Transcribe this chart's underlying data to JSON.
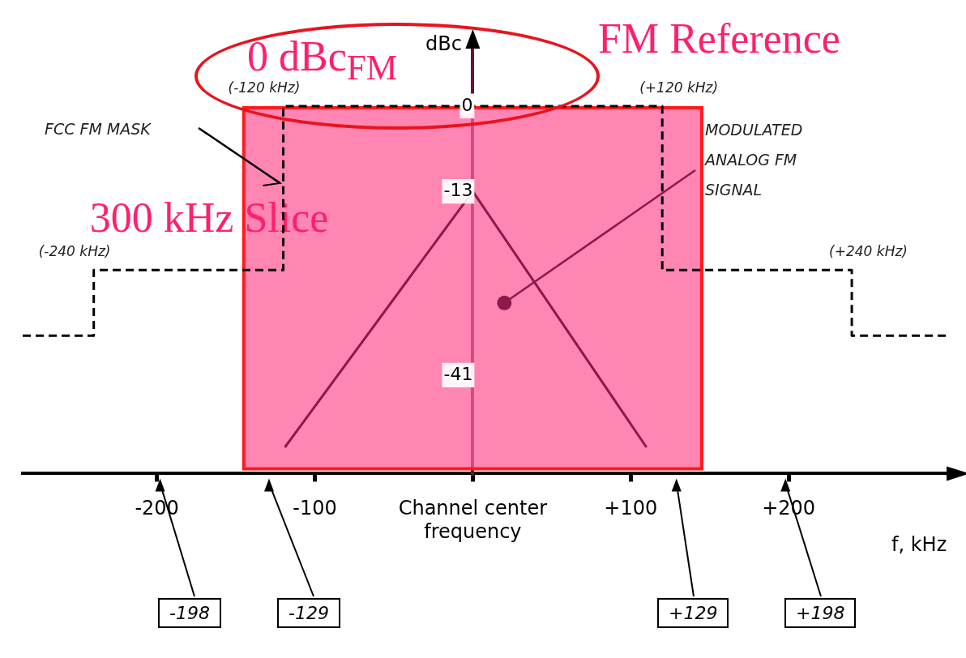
{
  "chart_data": {
    "type": "line",
    "xlabel": "f, kHz",
    "ylabel": "dBc",
    "xlim": [
      -285,
      300
    ],
    "ylim": [
      -56,
      9
    ],
    "xticks": [
      -200,
      -100,
      {
        "value": 0,
        "label": "Channel center frequency"
      },
      {
        "value": 100,
        "label": "+100"
      },
      {
        "value": 200,
        "label": "+200"
      }
    ],
    "yticks": [
      0,
      -13,
      -41
    ],
    "grid": false,
    "legend": false,
    "marker": "none",
    "series": [
      {
        "type": "line",
        "line_style": "dashed",
        "color": "#000000",
        "x": [
          -285,
          -240,
          -240,
          -120,
          -120,
          120,
          120,
          240,
          240,
          300
        ],
        "values": [
          -35,
          -35,
          -25,
          -25,
          0,
          0,
          -25,
          -25,
          -35,
          -35
        ]
      },
      {
        "type": "line",
        "color": "#8b1a4a",
        "x": [
          -119,
          0,
          110
        ],
        "values": [
          -52,
          -13,
          -52
        ]
      }
    ],
    "bands": [
      {
        "axis": "x",
        "from": -145,
        "to": 145,
        "label": "300 kHz Slice",
        "color": "#ff5c99"
      }
    ],
    "annotations": [
      "FM Reference",
      "0 dBc$_{FM}$",
      "FCC FM MASK",
      {
        "text": "MODULATED ANALOG FM SIGNAL",
        "x": 20,
        "y": -30
      },
      {
        "text": "(-120 kHz)",
        "x": -120,
        "y": 0
      },
      {
        "text": "(+120 kHz)",
        "x": 120,
        "y": 0
      },
      {
        "text": "(-240 kHz)",
        "x": -240,
        "y": -25
      },
      {
        "text": "(+240 kHz)",
        "x": 240,
        "y": -25
      },
      "-198",
      "-129",
      "+129",
      "+198"
    ]
  }
}
